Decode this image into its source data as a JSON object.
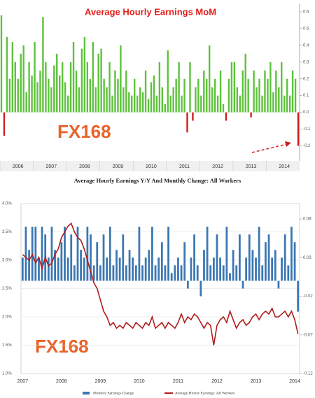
{
  "chart_data": [
    {
      "type": "bar",
      "title": "Average Hourly Earnings MoM",
      "watermark": "FX168",
      "categories": [
        null,
        null,
        null,
        null,
        null,
        null,
        "2006",
        null,
        null,
        null,
        null,
        null,
        null,
        null,
        null,
        null,
        null,
        null,
        "2007",
        null,
        null,
        null,
        null,
        null,
        null,
        null,
        null,
        null,
        null,
        null,
        "2008",
        null,
        null,
        null,
        null,
        null,
        null,
        null,
        null,
        null,
        null,
        null,
        "2009",
        null,
        null,
        null,
        null,
        null,
        null,
        null,
        null,
        null,
        null,
        null,
        "2010",
        null,
        null,
        null,
        null,
        null,
        null,
        null,
        null,
        null,
        null,
        null,
        "2011",
        null,
        null,
        null,
        null,
        null,
        null,
        null,
        null,
        null,
        null,
        null,
        "2012",
        null,
        null,
        null,
        null,
        null,
        null,
        null,
        null,
        null,
        null,
        null,
        "2013",
        null,
        null,
        null,
        null,
        null,
        null,
        null,
        null,
        null,
        null,
        null,
        "2014",
        null,
        null,
        null,
        null,
        null
      ],
      "values": [
        0.58,
        -0.14,
        0.45,
        0.2,
        0.42,
        0.3,
        0.2,
        0.35,
        0.4,
        0.12,
        0.3,
        0.22,
        0.42,
        0.18,
        0.25,
        0.57,
        0.3,
        0.2,
        0.15,
        0.28,
        0.35,
        0.22,
        0.3,
        0.18,
        0.1,
        0.3,
        0.42,
        0.25,
        0.15,
        0.38,
        0.45,
        0.3,
        0.2,
        0.42,
        0.15,
        0.35,
        0.38,
        0.2,
        0.15,
        0.3,
        0.1,
        0.25,
        0.2,
        0.4,
        0.15,
        0.25,
        0.12,
        0.1,
        0.2,
        0.1,
        0.15,
        0.12,
        0.25,
        0.08,
        0.18,
        0.22,
        0.1,
        0.3,
        0.15,
        0.05,
        0.37,
        0.1,
        0.15,
        0.2,
        0.3,
        0.1,
        0.2,
        -0.12,
        0.3,
        -0.05,
        0.15,
        0.2,
        0.1,
        0.25,
        0.2,
        0.4,
        0.15,
        0.2,
        0.1,
        0.25,
        0.05,
        -0.05,
        0.2,
        0.3,
        0.3,
        0.15,
        0.1,
        0.25,
        0.35,
        0.2,
        -0.03,
        0.25,
        0.15,
        0.2,
        0.1,
        0.25,
        0.2,
        0.3,
        0.12,
        0.25,
        0.15,
        0.3,
        0.1,
        0.2,
        0.1,
        0.25,
        0.2,
        -0.2
      ],
      "color": "#5cc23a",
      "negative_color": "#cc1f1f",
      "ylim": [
        -0.29,
        0.65
      ],
      "yticks": [
        0.6,
        0.5,
        0.4,
        0.3,
        0.2,
        0.1,
        {
          "value": 0,
          "label": "0.0"
        },
        -0.1,
        -0.2
      ]
    },
    {
      "type": "combo",
      "title": "Average Hourly Earnings Y/Y And Monthly Change: All Workers",
      "watermark": "FX168",
      "categories": [
        "2007",
        null,
        null,
        null,
        null,
        null,
        null,
        null,
        null,
        null,
        null,
        null,
        "2008",
        null,
        null,
        null,
        null,
        null,
        null,
        null,
        null,
        null,
        null,
        null,
        "2009",
        null,
        null,
        null,
        null,
        null,
        null,
        null,
        null,
        null,
        null,
        null,
        "2010",
        null,
        null,
        null,
        null,
        null,
        null,
        null,
        null,
        null,
        null,
        null,
        "2011",
        null,
        null,
        null,
        null,
        null,
        null,
        null,
        null,
        null,
        null,
        null,
        "2012",
        null,
        null,
        null,
        null,
        null,
        null,
        null,
        null,
        null,
        null,
        null,
        "2013",
        null,
        null,
        null,
        null,
        null,
        null,
        null,
        null,
        null,
        null,
        null,
        "2014",
        null
      ],
      "series": [
        {
          "name": "Monthly Earnings Change",
          "color": "#3b77b3",
          "axis": "y2",
          "values": [
            0.03,
            0.07,
            0.04,
            0.07,
            0.07,
            0.03,
            0.07,
            0.06,
            0.03,
            0.07,
            0.04,
            0.03,
            0.05,
            0.07,
            0.03,
            0.06,
            0.02,
            0.07,
            0.04,
            0.03,
            0.07,
            0.06,
            0.02,
            0.05,
            0.02,
            0.06,
            0.03,
            0.07,
            0.02,
            0.04,
            0.03,
            0.06,
            0.02,
            0.04,
            0.03,
            0.02,
            0.07,
            0.02,
            0.03,
            0.04,
            0.07,
            0.02,
            0.03,
            0.05,
            0.02,
            0.07,
            0.01,
            0.02,
            0.03,
            0.02,
            0.05,
            -0.01,
            0.03,
            0.06,
            0.02,
            -0.02,
            0.04,
            0.07,
            0.02,
            0.03,
            0.06,
            0.03,
            0.02,
            0.07,
            0.01,
            0.04,
            0.02,
            0.06,
            -0.01,
            0.03,
            0.06,
            0.04,
            0.03,
            0.07,
            0.02,
            0.05,
            0.06,
            0.03,
            0.04,
            -0.01,
            0.03,
            0.06,
            0.02,
            0.07,
            0.05,
            -0.04
          ]
        },
        {
          "name": "Average Hourly Earnings: All Workers",
          "color": "#b01c1c",
          "axis": "y",
          "values": [
            3.1,
            3.05,
            3.0,
            3.1,
            2.95,
            3.05,
            2.85,
            3.05,
            2.9,
            2.95,
            3.1,
            3.2,
            3.4,
            3.5,
            3.6,
            3.65,
            3.5,
            3.4,
            3.35,
            3.2,
            3.0,
            2.8,
            2.6,
            2.5,
            2.3,
            2.1,
            2.0,
            1.85,
            1.9,
            1.8,
            1.85,
            1.8,
            1.9,
            1.85,
            1.8,
            1.9,
            1.85,
            1.8,
            1.9,
            1.85,
            2.0,
            1.8,
            1.85,
            1.9,
            1.8,
            1.9,
            1.85,
            1.8,
            1.9,
            2.05,
            1.9,
            2.0,
            1.95,
            2.05,
            2.0,
            1.9,
            1.8,
            1.9,
            1.85,
            1.5,
            1.85,
            1.95,
            2.0,
            1.9,
            2.1,
            1.95,
            1.8,
            1.9,
            1.95,
            1.85,
            1.9,
            2.0,
            2.05,
            1.95,
            2.05,
            2.1,
            2.05,
            2.15,
            2.0,
            2.0,
            2.05,
            2.1,
            2.0,
            2.1,
            1.95,
            1.7
          ]
        }
      ],
      "ylim": [
        1.0,
        4.0
      ],
      "yticks": [
        {
          "value": 4.0,
          "label": "4.0%"
        },
        {
          "value": 3.5,
          "label": "3.5%"
        },
        {
          "value": 3.0,
          "label": "3.0%"
        },
        {
          "value": 2.5,
          "label": "2.5%"
        },
        {
          "value": 2.0,
          "label": "2.0%"
        },
        {
          "value": 1.5,
          "label": "1.5%"
        },
        {
          "value": 1.0,
          "label": "1.0%"
        }
      ],
      "y2lim": [
        -0.12,
        0.1
      ],
      "y2ticks": [
        0.08,
        0.03,
        -0.02,
        -0.07,
        -0.12
      ],
      "grid": true
    }
  ]
}
